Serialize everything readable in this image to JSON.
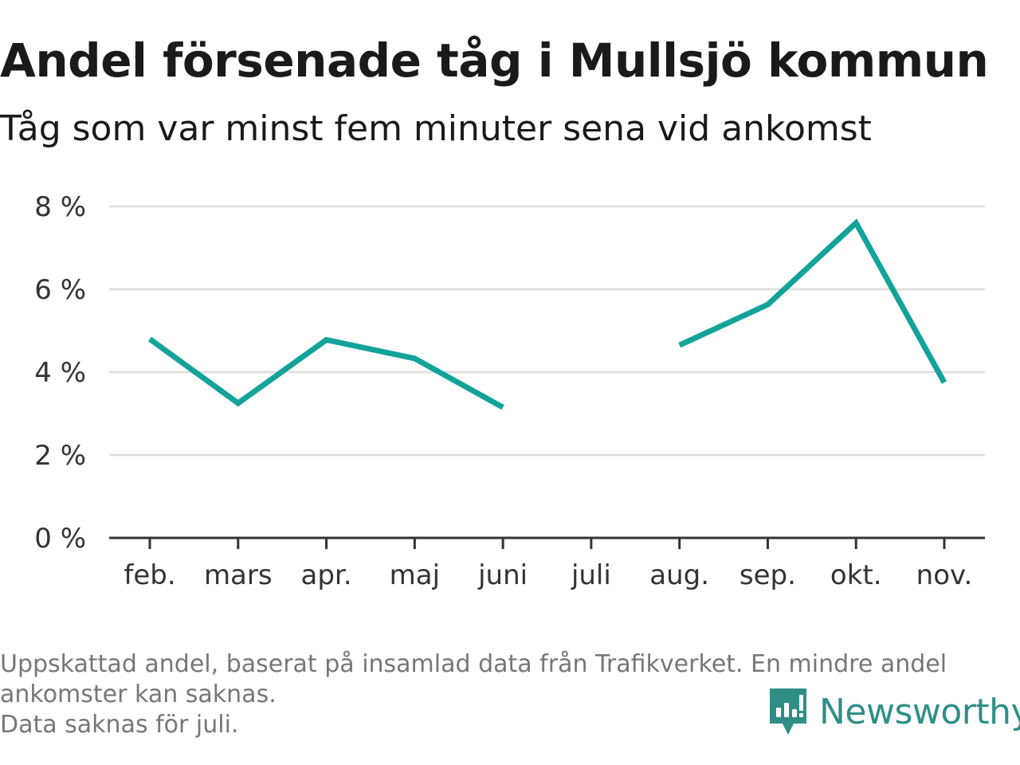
{
  "title": "Andel försenade tåg i Mullsjö kommun",
  "subtitle": "Tåg som var minst fem minuter sena vid ankomst",
  "footer": {
    "note_line1": "Uppskattad andel, baserat på insamlad data från Trafikverket. En mindre andel",
    "note_line2": "ankomster kan saknas.",
    "note_line3": "Data saknas för juli."
  },
  "brand": {
    "name": "Newsworthy",
    "icon": "newsworthy-logo-icon",
    "color": "#2f8f86"
  },
  "chart_data": {
    "type": "line",
    "categories": [
      "feb.",
      "mars",
      "apr.",
      "maj",
      "juni",
      "juli",
      "aug.",
      "sep.",
      "okt.",
      "nov."
    ],
    "series": [
      {
        "values": [
          4.8,
          3.25,
          4.78,
          4.33,
          3.15,
          null,
          4.65,
          5.63,
          7.6,
          3.75
        ],
        "color": "#12a39a"
      }
    ],
    "y_ticks": [
      0,
      2,
      4,
      6,
      8
    ],
    "y_tick_labels": [
      "0 %",
      "2 %",
      "4 %",
      "6 %",
      "8 %"
    ],
    "ylim": [
      0,
      8
    ],
    "grid": true,
    "xlabel": "",
    "ylabel": ""
  }
}
